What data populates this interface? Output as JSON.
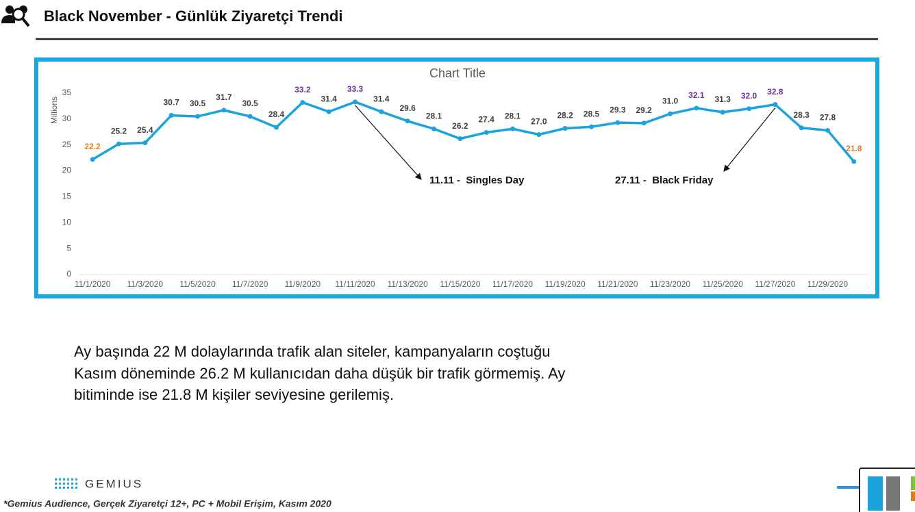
{
  "header": {
    "title": "Black November - Günlük Ziyaretçi Trendi"
  },
  "chart_data": {
    "type": "line",
    "title": "Chart Title",
    "y_label": "Millions",
    "categories": [
      "11/1/2020",
      null,
      "11/3/2020",
      null,
      "11/5/2020",
      null,
      "11/7/2020",
      null,
      "11/9/2020",
      null,
      "11/11/2020",
      null,
      "11/13/2020",
      null,
      "11/15/2020",
      null,
      "11/17/2020",
      null,
      "11/19/2020",
      null,
      "11/21/2020",
      null,
      "11/23/2020",
      null,
      "11/25/2020",
      null,
      "11/27/2020",
      null,
      "11/29/2020",
      null
    ],
    "values": [
      22.2,
      25.2,
      25.4,
      30.7,
      30.5,
      31.7,
      30.5,
      28.4,
      33.2,
      31.4,
      33.3,
      31.4,
      29.6,
      28.1,
      26.2,
      27.4,
      28.1,
      27.0,
      28.2,
      28.5,
      29.3,
      29.2,
      31.0,
      32.1,
      31.3,
      32.0,
      32.8,
      28.3,
      27.8,
      21.8
    ],
    "value_labels": [
      "22.2",
      "25.2",
      "25.4",
      "30.7",
      "30.5",
      "31.7",
      "30.5",
      "28.4",
      "33.2",
      "31.4",
      "33.3",
      "31.4",
      "29.6",
      "28.1",
      "26.2",
      "27.4",
      "28.1",
      "27.0",
      "28.2",
      "28.5",
      "29.3",
      "29.2",
      "31.0",
      "32.1",
      "31.3",
      "32.0",
      "32.8",
      "28.3",
      "27.8",
      "21.8"
    ],
    "value_label_colors": [
      "#e07b28",
      "#404040",
      "#404040",
      "#404040",
      "#404040",
      "#404040",
      "#404040",
      "#404040",
      "#7030a0",
      "#404040",
      "#7030a0",
      "#404040",
      "#404040",
      "#404040",
      "#404040",
      "#404040",
      "#404040",
      "#404040",
      "#404040",
      "#404040",
      "#404040",
      "#404040",
      "#404040",
      "#7030a0",
      "#404040",
      "#7030a0",
      "#7030a0",
      "#404040",
      "#404040",
      "#e07b28"
    ],
    "color": "#1ba3dc",
    "ylim": [
      0,
      35
    ],
    "yticks": [
      0,
      5,
      10,
      15,
      20,
      25,
      30,
      35
    ],
    "annotations": [
      "11.11 -  Singles Day",
      "27.11 -  Black Friday"
    ]
  },
  "body": {
    "lines": [
      "Ay başında 22 M dolaylarında trafik alan siteler, kampanyaların coştuğu",
      "Kasım döneminde 26.2 M kullanıcıdan daha düşük bir trafik görmemiş. Ay",
      "bitiminde ise 21.8 M kişiler seviyesine gerilemiş."
    ]
  },
  "footer": {
    "logo": "GEMIUS",
    "note": "*Gemius Audience, Gerçek Ziyaretçi 12+, PC + Mobil Erişim, Kasım 2020"
  }
}
